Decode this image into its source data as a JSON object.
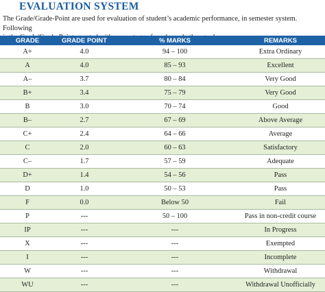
{
  "header": {
    "title": "EVALUATION SYSTEM",
    "paragraph": [
      "The Grade/Grade-Point are used for evaluation of student’s academic performance, in semester system. Following",
      "is the Grade/Grade-Point equated with percentage of marks and other grades."
    ]
  },
  "table": {
    "columns": [
      "GRADE",
      "GRADE POINT",
      "% MARKS",
      "REMARKS"
    ],
    "rows": [
      [
        "A+",
        "4.0",
        "94 – 100",
        "Extra Ordinary"
      ],
      [
        "A",
        "4.0",
        "85 – 93",
        "Excellent"
      ],
      [
        "A–",
        "3.7",
        "80 – 84",
        "Very Good"
      ],
      [
        "B+",
        "3.4",
        "75 – 79",
        "Very Good"
      ],
      [
        "B",
        "3.0",
        "70 – 74",
        "Good"
      ],
      [
        "B–",
        "2.7",
        "67 – 69",
        "Above Average"
      ],
      [
        "C+",
        "2.4",
        "64 – 66",
        "Average"
      ],
      [
        "C",
        "2.0",
        "60 – 63",
        "Satisfactory"
      ],
      [
        "C–",
        "1.7",
        "57 – 59",
        "Adequate"
      ],
      [
        "D+",
        "1.4",
        "54 – 56",
        "Pass"
      ],
      [
        "D",
        "1.0",
        "50 – 53",
        "Pass"
      ],
      [
        "F",
        "0.0",
        "Below 50",
        "Fail"
      ],
      [
        "P",
        "---",
        "50 – 100",
        "Pass in non-credit course"
      ],
      [
        "IP",
        "---",
        "---",
        "In Progress"
      ],
      [
        "X",
        "---",
        "---",
        "Exempted"
      ],
      [
        "I",
        "---",
        "---",
        "Incomplete"
      ],
      [
        "W",
        "---",
        "---",
        "Withdrawal"
      ],
      [
        "WU",
        "---",
        "---",
        "Withdrawal Unofficially"
      ]
    ]
  }
}
